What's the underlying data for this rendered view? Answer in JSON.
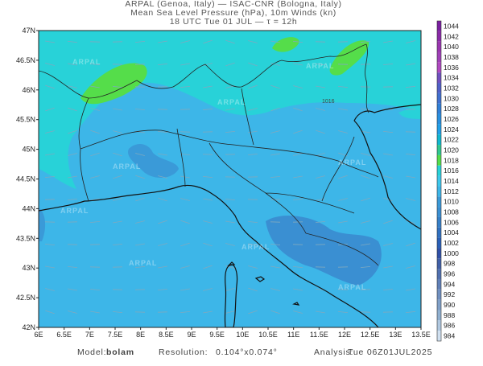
{
  "header": {
    "lines": [
      "ARPAL (Genoa, Italy)  —  ISAC-CNR (Bologna, Italy)",
      "Mean Sea Level Pressure (hPa), 10m Winds (kn)",
      "18 UTC Tue 01 JUL  —  τ = 12h"
    ]
  },
  "map": {
    "lon_ticks": [
      "6E",
      "6.5E",
      "7E",
      "7.5E",
      "8E",
      "8.5E",
      "9E",
      "9.5E",
      "10E",
      "10.5E",
      "11E",
      "11.5E",
      "12E",
      "12.5E",
      "13E",
      "13.5E"
    ],
    "lat_ticks": [
      "47N",
      "46.5N",
      "46N",
      "45.5N",
      "45N",
      "44.5N",
      "44N",
      "43.5N",
      "43N",
      "42.5N",
      "42N"
    ],
    "contour_label": "1016",
    "watermark": "ARPAL"
  },
  "colorbar": {
    "labels": [
      1044,
      1042,
      1040,
      1038,
      1036,
      1034,
      1032,
      1030,
      1028,
      1026,
      1024,
      1022,
      1020,
      1018,
      1016,
      1014,
      1012,
      1010,
      1008,
      1006,
      1004,
      1002,
      1000,
      998,
      996,
      994,
      992,
      990,
      988,
      986,
      984
    ]
  },
  "footer": {
    "model_label": "Model:",
    "model": "bolam",
    "resolution_label": "Resolution:",
    "resolution": "0.104°x0.074°",
    "analysis_label": "Analysis:",
    "analysis": "Tue 06Z01JUL2025"
  }
}
